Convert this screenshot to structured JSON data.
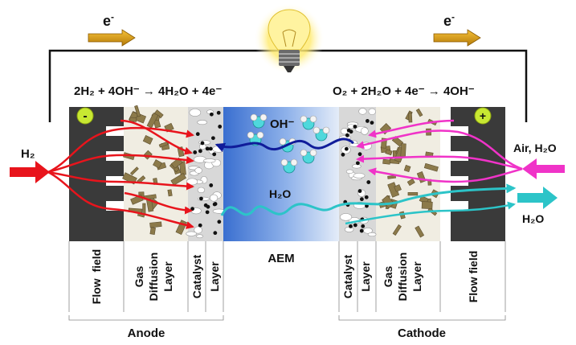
{
  "electron": {
    "label": "e",
    "charge": "-"
  },
  "equations": {
    "anode": "2H₂ + 4OH⁻ → 4H₂O + 4e⁻",
    "cathode": "O₂ + 2H₂O + 4e⁻ → 4OH⁻"
  },
  "electrodes": {
    "negative": "-",
    "positive": "+"
  },
  "inputs": {
    "anode_fuel": "H₂",
    "cathode_feed": "Air, H₂O",
    "cathode_exhaust": "H₂O"
  },
  "species": {
    "hydroxide": "OH⁻",
    "water": "H₂O"
  },
  "membrane": "AEM",
  "layers": {
    "anode": [
      "Flow  field",
      "Gas Diffusion Layer",
      "Catalyst Layer"
    ],
    "cathode": [
      "Catalyst Layer",
      "Gas Diffusion Layer",
      "Flow field"
    ]
  },
  "sections": {
    "anode": "Anode",
    "cathode": "Cathode"
  },
  "colors": {
    "hydrogen_flow": "#e8141c",
    "air_flow": "#f033c8",
    "water_flow": "#2cc4c8",
    "hydroxide_flow": "#101c9a",
    "flow_plate": "#3a3a3a",
    "gdl_fiber": "#8c7a4a",
    "electrode_badge": "#c8e832",
    "electron_arrow": "#d89a10"
  },
  "icons": [
    "light-bulb-icon",
    "electron-arrow-icon",
    "water-molecule-icon"
  ]
}
